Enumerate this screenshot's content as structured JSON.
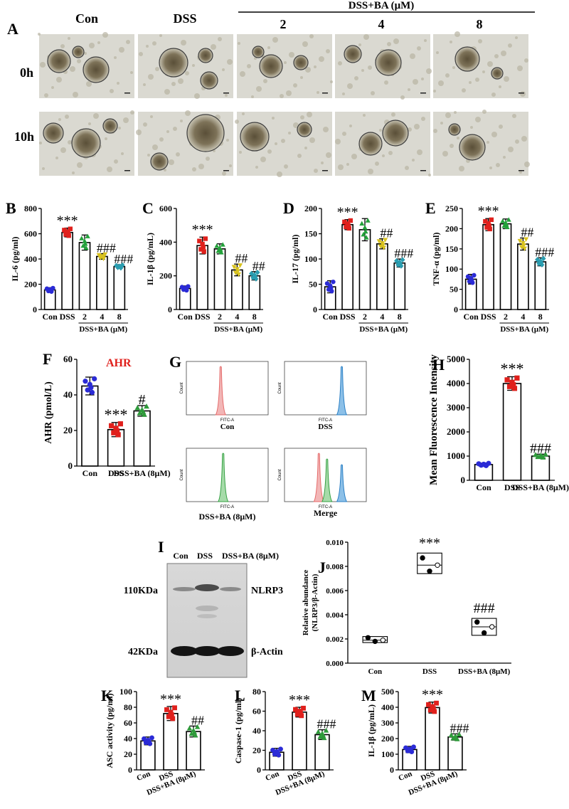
{
  "panels": {
    "A": {
      "label": "A",
      "columns": [
        "Con",
        "DSS",
        "2",
        "4",
        "8"
      ],
      "group_label": "DSS+BA (μM)",
      "rows": [
        "0h",
        "10h"
      ]
    },
    "F_title": "AHR",
    "G": {
      "label": "G",
      "axis_x": "FITC-A",
      "axis_y": "Count",
      "captions": [
        "Con",
        "DSS",
        "DSS+BA (8μM)",
        "Merge"
      ]
    },
    "I": {
      "label": "I",
      "lanes": [
        "Con",
        "DSS",
        "DSS+BA (8μM)"
      ],
      "bands": [
        {
          "size": "110KDa",
          "protein": "NLRP3"
        },
        {
          "size": "42KDa",
          "protein": "β-Actin"
        }
      ]
    }
  },
  "colors": {
    "con": "#2b2bd6",
    "dss": "#e0201c",
    "ba2": "#22a23a",
    "ba4": "#d8c21e",
    "ba8": "#2a9db0",
    "green": "#2e9b3a",
    "ahr_title": "#e0201c"
  },
  "chart_data": [
    {
      "id": "B",
      "type": "bar",
      "label": "B",
      "ylabel": "IL-6 (pg/ml)",
      "ylim": [
        0,
        800
      ],
      "yticks": [
        0,
        200,
        400,
        600,
        800
      ],
      "categories": [
        "Con",
        "DSS",
        "2",
        "4",
        "8"
      ],
      "group_label": "DSS+BA (μM)",
      "values": [
        155,
        610,
        530,
        420,
        340
      ],
      "err": [
        18,
        35,
        60,
        22,
        15
      ],
      "significance": [
        "",
        "***",
        "",
        "###",
        "###"
      ]
    },
    {
      "id": "C",
      "type": "bar",
      "label": "C",
      "ylabel": "IL-1β (pg/mL)",
      "ylim": [
        0,
        600
      ],
      "yticks": [
        0,
        200,
        400,
        600
      ],
      "categories": [
        "Con",
        "DSS",
        "2",
        "4",
        "8"
      ],
      "group_label": "DSS+BA (μM)",
      "values": [
        125,
        380,
        360,
        235,
        200
      ],
      "err": [
        15,
        50,
        30,
        35,
        25
      ],
      "significance": [
        "",
        "***",
        "",
        "##",
        "##"
      ]
    },
    {
      "id": "D",
      "type": "bar",
      "label": "D",
      "ylabel": "IL-17 (pg/ml)",
      "ylim": [
        0,
        200
      ],
      "yticks": [
        0,
        50,
        100,
        150,
        200
      ],
      "categories": [
        "Con",
        "DSS",
        "2",
        "4",
        "8"
      ],
      "group_label": "DSS+BA (μM)",
      "values": [
        45,
        168,
        158,
        130,
        92
      ],
      "err": [
        12,
        10,
        22,
        10,
        8
      ],
      "significance": [
        "",
        "***",
        "",
        "##",
        "###"
      ]
    },
    {
      "id": "E",
      "type": "bar",
      "label": "E",
      "ylabel": "TNF-α (pg/ml)",
      "ylim": [
        0,
        250
      ],
      "yticks": [
        0,
        50,
        100,
        150,
        200,
        250
      ],
      "categories": [
        "Con",
        "DSS",
        "2",
        "4",
        "8"
      ],
      "group_label": "DSS+BA (μM)",
      "values": [
        75,
        210,
        212,
        162,
        118
      ],
      "err": [
        12,
        15,
        12,
        15,
        10
      ],
      "significance": [
        "",
        "***",
        "",
        "##",
        "###"
      ]
    },
    {
      "id": "F",
      "type": "bar",
      "label": "F",
      "ylabel": "AHR (pmol/L)",
      "ylim": [
        0,
        60
      ],
      "yticks": [
        0,
        20,
        40,
        60
      ],
      "categories": [
        "Con",
        "DSS",
        "DSS+BA (8μM)"
      ],
      "values": [
        45,
        20.5,
        31
      ],
      "err": [
        5,
        4,
        3
      ],
      "significance": [
        "",
        "***",
        "#"
      ]
    },
    {
      "id": "H",
      "type": "bar",
      "label": "H",
      "ylabel": "Mean Fluorescence Intensity",
      "ylim": [
        0,
        5000
      ],
      "yticks": [
        0,
        1000,
        2000,
        3000,
        4000,
        5000
      ],
      "categories": [
        "Con",
        "DSS",
        "DSS+BA (8μM)"
      ],
      "values": [
        650,
        4000,
        1000
      ],
      "err": [
        60,
        280,
        80
      ],
      "significance": [
        "",
        "***",
        "###"
      ]
    },
    {
      "id": "J",
      "type": "boxplot",
      "label": "J",
      "ylabel": "Relative abundance (NLRP3/β-Actin)",
      "ylim": [
        0,
        0.01
      ],
      "yticks": [
        "0.000",
        "0.002",
        "0.004",
        "0.006",
        "0.008",
        "0.010"
      ],
      "categories": [
        "Con",
        "DSS",
        "DSS+BA (8μM)"
      ],
      "boxes": [
        {
          "low": 0.0017,
          "high": 0.0022,
          "median": 0.0019,
          "points": [
            0.0021,
            0.0018,
            0.0019
          ]
        },
        {
          "low": 0.0074,
          "high": 0.0091,
          "median": 0.0081,
          "points": [
            0.0087,
            0.0076,
            0.0081
          ]
        },
        {
          "low": 0.0023,
          "high": 0.0037,
          "median": 0.003,
          "points": [
            0.0034,
            0.0025,
            0.003
          ]
        }
      ],
      "significance": [
        "",
        "***",
        "###"
      ]
    },
    {
      "id": "K",
      "type": "bar",
      "label": "K",
      "ylabel": "ASC activity (pg/ml)",
      "ylim": [
        0,
        100
      ],
      "yticks": [
        0,
        20,
        40,
        60,
        80,
        100
      ],
      "categories": [
        "Con",
        "DSS",
        "DSS+BA (8μM)"
      ],
      "values": [
        37,
        72,
        49
      ],
      "err": [
        5,
        9,
        7
      ],
      "significance": [
        "",
        "***",
        "##"
      ]
    },
    {
      "id": "L",
      "type": "bar",
      "label": "L",
      "ylabel": "Caspase-1 (pg/ml)",
      "ylim": [
        0,
        80
      ],
      "yticks": [
        0,
        20,
        40,
        60,
        80
      ],
      "categories": [
        "Con",
        "DSS",
        "DSS+BA (8μM)"
      ],
      "values": [
        18,
        59,
        36
      ],
      "err": [
        4,
        5,
        5
      ],
      "significance": [
        "",
        "***",
        "###"
      ]
    },
    {
      "id": "M",
      "type": "bar",
      "label": "M",
      "ylabel": "IL-1β (pg/mL)",
      "ylim": [
        0,
        500
      ],
      "yticks": [
        0,
        100,
        200,
        300,
        400,
        500
      ],
      "categories": [
        "Con",
        "DSS",
        "DSS+BA (8μM)"
      ],
      "values": [
        130,
        398,
        210
      ],
      "err": [
        20,
        35,
        20
      ],
      "significance": [
        "",
        "***",
        "###"
      ]
    }
  ]
}
